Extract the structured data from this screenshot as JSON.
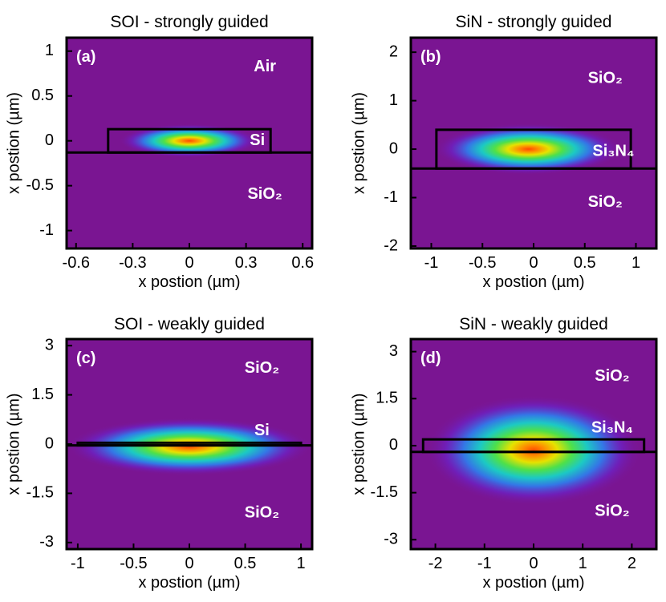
{
  "chart_data": [
    {
      "type": "heatmap",
      "panel_label": "(a)",
      "title": "SOI - strongly guided",
      "xlabel": "x postion (µm)",
      "ylabel": "x postion (µm)",
      "xlim": [
        -0.65,
        0.65
      ],
      "ylim": [
        -1.2,
        1.15
      ],
      "xticks": [
        -0.6,
        -0.3,
        0,
        0.3,
        0.6
      ],
      "xtick_labels": [
        "-0.6",
        "-0.3",
        "0",
        "0.3",
        "0.6"
      ],
      "yticks": [
        1,
        0.5,
        0,
        -0.5,
        -1
      ],
      "ytick_labels": [
        "1",
        "0.5",
        "0",
        "-0.5",
        "-1"
      ],
      "core": {
        "x0": -0.43,
        "x1": 0.43,
        "y0": -0.13,
        "y1": 0.13
      },
      "substrate_top": -0.13,
      "mode": {
        "cx": 0,
        "cy": 0,
        "sx": 0.17,
        "sy": 0.085
      },
      "region_labels": [
        {
          "text": "Air",
          "x": 0.4,
          "y": 0.82
        },
        {
          "text": "Si",
          "x": 0.36,
          "y": 0
        },
        {
          "text": "SiO₂",
          "x": 0.4,
          "y": -0.6
        }
      ]
    },
    {
      "type": "heatmap",
      "panel_label": "(b)",
      "title": "SiN - strongly guided",
      "xlabel": "x postion (µm)",
      "ylabel": "x postion (µm)",
      "xlim": [
        -1.2,
        1.2
      ],
      "ylim": [
        -2.05,
        2.3
      ],
      "xticks": [
        -1,
        -0.5,
        0,
        0.5,
        1
      ],
      "xtick_labels": [
        "-1",
        "-0.5",
        "0",
        "0.5",
        "1"
      ],
      "yticks": [
        2,
        1,
        0,
        -1,
        -2
      ],
      "ytick_labels": [
        "2",
        "1",
        "0",
        "-1",
        "-2"
      ],
      "core": {
        "x0": -0.95,
        "x1": 0.95,
        "y0": -0.4,
        "y1": 0.4
      },
      "substrate_top": -0.4,
      "mode": {
        "cx": -0.05,
        "cy": 0,
        "sx": 0.42,
        "sy": 0.24
      },
      "region_labels": [
        {
          "text": "SiO₂",
          "x": 0.7,
          "y": 1.45
        },
        {
          "text": "Si₃N₄",
          "x": 0.78,
          "y": -0.05
        },
        {
          "text": "SiO₂",
          "x": 0.7,
          "y": -1.1
        }
      ]
    },
    {
      "type": "heatmap",
      "panel_label": "(c)",
      "title": "SOI - weakly guided",
      "xlabel": "x postion (µm)",
      "ylabel": "x postion (µm)",
      "xlim": [
        -1.1,
        1.1
      ],
      "ylim": [
        -3.2,
        3.2
      ],
      "xticks": [
        -1,
        -0.5,
        0,
        0.5,
        1
      ],
      "xtick_labels": [
        "-1",
        "-0.5",
        "0",
        "0.5",
        "1"
      ],
      "yticks": [
        3,
        1.5,
        0,
        -1.5,
        -3
      ],
      "ytick_labels": [
        "3",
        "1.5",
        "0",
        "-1.5",
        "-3"
      ],
      "core": {
        "x0": -1.0,
        "x1": 1.0,
        "y0": -0.04,
        "y1": 0.04
      },
      "substrate_top": -0.04,
      "mode": {
        "cx": 0,
        "cy": -0.08,
        "sx": 0.5,
        "sy": 0.4
      },
      "region_labels": [
        {
          "text": "SiO₂",
          "x": 0.65,
          "y": 2.3
        },
        {
          "text": "Si",
          "x": 0.65,
          "y": 0.4
        },
        {
          "text": "SiO₂",
          "x": 0.65,
          "y": -2.1
        }
      ]
    },
    {
      "type": "heatmap",
      "panel_label": "(d)",
      "title": "SiN - weakly guided",
      "xlabel": "x postion (µm)",
      "ylabel": "x postion (µm)",
      "xlim": [
        -2.5,
        2.5
      ],
      "ylim": [
        -3.3,
        3.4
      ],
      "xticks": [
        -2,
        -1,
        0,
        1,
        2
      ],
      "xtick_labels": [
        "-2",
        "-1",
        "0",
        "1",
        "2"
      ],
      "yticks": [
        3,
        1.5,
        0,
        -1.5,
        -3
      ],
      "ytick_labels": [
        "3",
        "1.5",
        "0",
        "-1.5",
        "-3"
      ],
      "core": {
        "x0": -2.25,
        "x1": 2.25,
        "y0": -0.2,
        "y1": 0.2
      },
      "substrate_top": -0.2,
      "mode": {
        "cx": 0,
        "cy": -0.15,
        "sx": 1.0,
        "sy": 0.8
      },
      "region_labels": [
        {
          "text": "SiO₂",
          "x": 1.6,
          "y": 2.2
        },
        {
          "text": "Si₃N₄",
          "x": 1.6,
          "y": 0.55
        },
        {
          "text": "SiO₂",
          "x": 1.6,
          "y": -2.1
        }
      ]
    }
  ]
}
